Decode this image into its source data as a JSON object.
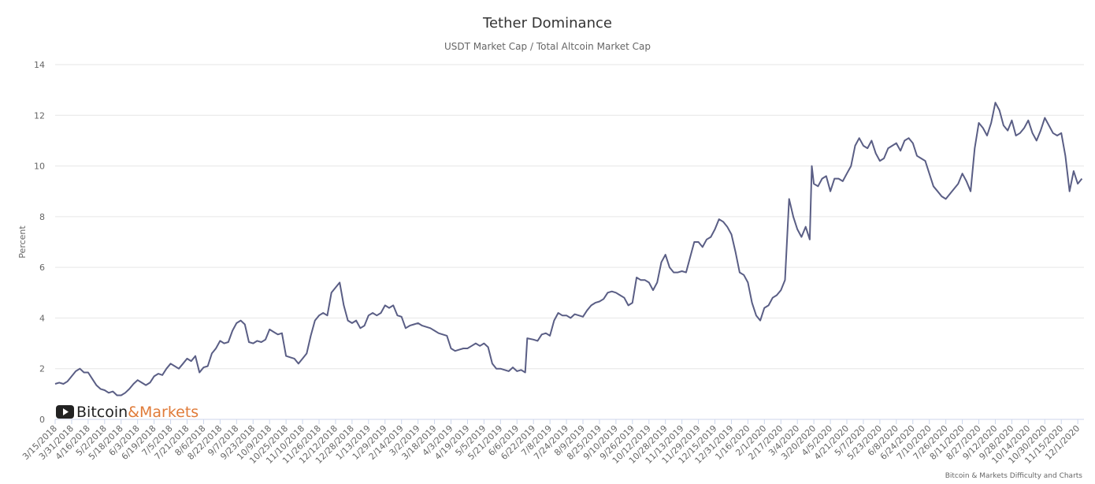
{
  "chart_data": {
    "type": "line",
    "title": "Tether Dominance",
    "subtitle": "USDT Market Cap / Total Altcoin Market Cap",
    "ylabel": "Percent",
    "ylim": [
      0,
      14
    ],
    "y_ticks": [
      "0",
      "2",
      "4",
      "6",
      "8",
      "10",
      "12",
      "14"
    ],
    "x_tick_labels": [
      "3/15/2018",
      "3/31/2018",
      "4/16/2018",
      "5/2/2018",
      "5/18/2018",
      "6/3/2018",
      "6/19/2018",
      "7/5/2018",
      "7/21/2018",
      "8/6/2018",
      "8/22/2018",
      "9/7/2018",
      "9/23/2018",
      "10/9/2018",
      "10/25/2018",
      "11/10/2018",
      "11/26/2018",
      "12/12/2018",
      "12/28/2018",
      "1/13/2019",
      "1/29/2019",
      "2/14/2019",
      "3/2/2019",
      "3/18/2019",
      "4/3/2019",
      "4/19/2019",
      "5/5/2019",
      "5/21/2019",
      "6/6/2019",
      "6/22/2019",
      "7/8/2019",
      "7/24/2019",
      "8/9/2019",
      "8/25/2019",
      "9/10/2019",
      "9/26/2019",
      "10/12/2019",
      "10/28/2019",
      "11/13/2019",
      "11/29/2019",
      "12/15/2019",
      "12/31/2019",
      "1/16/2020",
      "2/1/2020",
      "2/17/2020",
      "3/4/2020",
      "3/20/2020",
      "4/5/2020",
      "4/21/2020",
      "5/7/2020",
      "5/23/2020",
      "6/8/2020",
      "6/24/2020",
      "7/10/2020",
      "7/26/2020",
      "8/11/2020",
      "8/27/2020",
      "9/12/2020",
      "9/28/2020",
      "10/14/2020",
      "10/30/2020",
      "11/15/2020",
      "12/1/2020"
    ],
    "grid": true,
    "legend": "none",
    "series": [
      {
        "color": "#5a5e85",
        "points": [
          [
            "3/15/2018",
            1.4
          ],
          [
            "3/19/2018",
            1.45
          ],
          [
            "3/23/2018",
            1.4
          ],
          [
            "3/27/2018",
            1.5
          ],
          [
            "3/31/2018",
            1.7
          ],
          [
            "4/4/2018",
            1.9
          ],
          [
            "4/8/2018",
            2.0
          ],
          [
            "4/12/2018",
            1.85
          ],
          [
            "4/16/2018",
            1.85
          ],
          [
            "4/20/2018",
            1.6
          ],
          [
            "4/24/2018",
            1.35
          ],
          [
            "4/28/2018",
            1.2
          ],
          [
            "5/2/2018",
            1.15
          ],
          [
            "5/6/2018",
            1.05
          ],
          [
            "5/10/2018",
            1.1
          ],
          [
            "5/14/2018",
            0.95
          ],
          [
            "5/18/2018",
            0.95
          ],
          [
            "5/22/2018",
            1.05
          ],
          [
            "5/26/2018",
            1.2
          ],
          [
            "5/30/2018",
            1.4
          ],
          [
            "6/3/2018",
            1.55
          ],
          [
            "6/7/2018",
            1.45
          ],
          [
            "6/11/2018",
            1.35
          ],
          [
            "6/15/2018",
            1.45
          ],
          [
            "6/19/2018",
            1.7
          ],
          [
            "6/23/2018",
            1.8
          ],
          [
            "6/27/2018",
            1.75
          ],
          [
            "7/1/2018",
            2.0
          ],
          [
            "7/5/2018",
            2.2
          ],
          [
            "7/9/2018",
            2.1
          ],
          [
            "7/13/2018",
            2.0
          ],
          [
            "7/17/2018",
            2.2
          ],
          [
            "7/21/2018",
            2.4
          ],
          [
            "7/25/2018",
            2.3
          ],
          [
            "7/29/2018",
            2.5
          ],
          [
            "8/2/2018",
            1.85
          ],
          [
            "8/6/2018",
            2.05
          ],
          [
            "8/10/2018",
            2.1
          ],
          [
            "8/14/2018",
            2.6
          ],
          [
            "8/18/2018",
            2.8
          ],
          [
            "8/22/2018",
            3.1
          ],
          [
            "8/26/2018",
            3.0
          ],
          [
            "8/30/2018",
            3.05
          ],
          [
            "9/3/2018",
            3.5
          ],
          [
            "9/7/2018",
            3.8
          ],
          [
            "9/11/2018",
            3.9
          ],
          [
            "9/15/2018",
            3.75
          ],
          [
            "9/19/2018",
            3.05
          ],
          [
            "9/23/2018",
            3.0
          ],
          [
            "9/27/2018",
            3.1
          ],
          [
            "10/1/2018",
            3.05
          ],
          [
            "10/5/2018",
            3.15
          ],
          [
            "10/9/2018",
            3.55
          ],
          [
            "10/13/2018",
            3.45
          ],
          [
            "10/17/2018",
            3.35
          ],
          [
            "10/21/2018",
            3.4
          ],
          [
            "10/25/2018",
            2.5
          ],
          [
            "10/29/2018",
            2.45
          ],
          [
            "11/2/2018",
            2.4
          ],
          [
            "11/6/2018",
            2.2
          ],
          [
            "11/10/2018",
            2.4
          ],
          [
            "11/14/2018",
            2.6
          ],
          [
            "11/18/2018",
            3.3
          ],
          [
            "11/22/2018",
            3.9
          ],
          [
            "11/26/2018",
            4.1
          ],
          [
            "11/30/2018",
            4.2
          ],
          [
            "12/4/2018",
            4.1
          ],
          [
            "12/8/2018",
            5.0
          ],
          [
            "12/12/2018",
            5.2
          ],
          [
            "12/16/2018",
            5.4
          ],
          [
            "12/20/2018",
            4.5
          ],
          [
            "12/24/2018",
            3.9
          ],
          [
            "12/28/2018",
            3.8
          ],
          [
            "1/1/2019",
            3.9
          ],
          [
            "1/5/2019",
            3.6
          ],
          [
            "1/9/2019",
            3.7
          ],
          [
            "1/13/2019",
            4.1
          ],
          [
            "1/17/2019",
            4.2
          ],
          [
            "1/21/2019",
            4.1
          ],
          [
            "1/25/2019",
            4.2
          ],
          [
            "1/29/2019",
            4.5
          ],
          [
            "2/2/2019",
            4.4
          ],
          [
            "2/6/2019",
            4.5
          ],
          [
            "2/10/2019",
            4.1
          ],
          [
            "2/14/2019",
            4.05
          ],
          [
            "2/18/2019",
            3.6
          ],
          [
            "2/22/2019",
            3.7
          ],
          [
            "2/26/2019",
            3.75
          ],
          [
            "3/2/2019",
            3.8
          ],
          [
            "3/6/2019",
            3.7
          ],
          [
            "3/10/2019",
            3.65
          ],
          [
            "3/14/2019",
            3.6
          ],
          [
            "3/18/2019",
            3.5
          ],
          [
            "3/22/2019",
            3.4
          ],
          [
            "3/26/2019",
            3.35
          ],
          [
            "3/30/2019",
            3.3
          ],
          [
            "4/3/2019",
            2.8
          ],
          [
            "4/7/2019",
            2.7
          ],
          [
            "4/11/2019",
            2.75
          ],
          [
            "4/15/2019",
            2.8
          ],
          [
            "4/19/2019",
            2.8
          ],
          [
            "4/23/2019",
            2.9
          ],
          [
            "4/27/2019",
            3.0
          ],
          [
            "5/1/2019",
            2.9
          ],
          [
            "5/5/2019",
            3.0
          ],
          [
            "5/9/2019",
            2.85
          ],
          [
            "5/13/2019",
            2.2
          ],
          [
            "5/17/2019",
            2.0
          ],
          [
            "5/21/2019",
            2.0
          ],
          [
            "5/25/2019",
            1.95
          ],
          [
            "5/29/2019",
            1.9
          ],
          [
            "6/2/2019",
            2.05
          ],
          [
            "6/6/2019",
            1.9
          ],
          [
            "6/10/2019",
            1.95
          ],
          [
            "6/14/2019",
            1.85
          ],
          [
            "6/16/2019",
            3.2
          ],
          [
            "6/22/2019",
            3.15
          ],
          [
            "6/26/2019",
            3.1
          ],
          [
            "6/30/2019",
            3.35
          ],
          [
            "7/4/2019",
            3.4
          ],
          [
            "7/8/2019",
            3.3
          ],
          [
            "7/12/2019",
            3.9
          ],
          [
            "7/16/2019",
            4.2
          ],
          [
            "7/20/2019",
            4.1
          ],
          [
            "7/24/2019",
            4.1
          ],
          [
            "7/28/2019",
            4.0
          ],
          [
            "8/1/2019",
            4.15
          ],
          [
            "8/5/2019",
            4.1
          ],
          [
            "8/9/2019",
            4.05
          ],
          [
            "8/13/2019",
            4.3
          ],
          [
            "8/17/2019",
            4.5
          ],
          [
            "8/21/2019",
            4.6
          ],
          [
            "8/25/2019",
            4.65
          ],
          [
            "8/29/2019",
            4.75
          ],
          [
            "9/2/2019",
            5.0
          ],
          [
            "9/6/2019",
            5.05
          ],
          [
            "9/10/2019",
            5.0
          ],
          [
            "9/14/2019",
            4.9
          ],
          [
            "9/18/2019",
            4.8
          ],
          [
            "9/22/2019",
            4.5
          ],
          [
            "9/26/2019",
            4.6
          ],
          [
            "9/30/2019",
            5.6
          ],
          [
            "10/4/2019",
            5.5
          ],
          [
            "10/8/2019",
            5.5
          ],
          [
            "10/12/2019",
            5.4
          ],
          [
            "10/16/2019",
            5.1
          ],
          [
            "10/20/2019",
            5.4
          ],
          [
            "10/24/2019",
            6.2
          ],
          [
            "10/28/2019",
            6.5
          ],
          [
            "11/1/2019",
            6.0
          ],
          [
            "11/5/2019",
            5.8
          ],
          [
            "11/9/2019",
            5.8
          ],
          [
            "11/13/2019",
            5.85
          ],
          [
            "11/17/2019",
            5.8
          ],
          [
            "11/21/2019",
            6.4
          ],
          [
            "11/25/2019",
            7.0
          ],
          [
            "11/29/2019",
            7.0
          ],
          [
            "12/3/2019",
            6.8
          ],
          [
            "12/7/2019",
            7.1
          ],
          [
            "12/11/2019",
            7.2
          ],
          [
            "12/15/2019",
            7.5
          ],
          [
            "12/19/2019",
            7.9
          ],
          [
            "12/23/2019",
            7.8
          ],
          [
            "12/27/2019",
            7.6
          ],
          [
            "12/31/2019",
            7.3
          ],
          [
            "1/4/2020",
            6.6
          ],
          [
            "1/8/2020",
            5.8
          ],
          [
            "1/12/2020",
            5.7
          ],
          [
            "1/16/2020",
            5.4
          ],
          [
            "1/20/2020",
            4.6
          ],
          [
            "1/24/2020",
            4.1
          ],
          [
            "1/28/2020",
            3.9
          ],
          [
            "2/1/2020",
            4.4
          ],
          [
            "2/5/2020",
            4.5
          ],
          [
            "2/9/2020",
            4.8
          ],
          [
            "2/13/2020",
            4.9
          ],
          [
            "2/17/2020",
            5.1
          ],
          [
            "2/21/2020",
            5.5
          ],
          [
            "2/25/2020",
            8.7
          ],
          [
            "2/29/2020",
            8.0
          ],
          [
            "3/4/2020",
            7.5
          ],
          [
            "3/8/2020",
            7.2
          ],
          [
            "3/12/2020",
            7.6
          ],
          [
            "3/16/2020",
            7.1
          ],
          [
            "3/18/2020",
            10.0
          ],
          [
            "3/20/2020",
            9.3
          ],
          [
            "3/24/2020",
            9.2
          ],
          [
            "3/28/2020",
            9.5
          ],
          [
            "4/1/2020",
            9.6
          ],
          [
            "4/5/2020",
            9.0
          ],
          [
            "4/9/2020",
            9.5
          ],
          [
            "4/13/2020",
            9.5
          ],
          [
            "4/17/2020",
            9.4
          ],
          [
            "4/21/2020",
            9.7
          ],
          [
            "4/25/2020",
            10.0
          ],
          [
            "4/29/2020",
            10.8
          ],
          [
            "5/3/2020",
            11.1
          ],
          [
            "5/7/2020",
            10.8
          ],
          [
            "5/11/2020",
            10.7
          ],
          [
            "5/15/2020",
            11.0
          ],
          [
            "5/19/2020",
            10.5
          ],
          [
            "5/23/2020",
            10.2
          ],
          [
            "5/27/2020",
            10.3
          ],
          [
            "5/31/2020",
            10.7
          ],
          [
            "6/4/2020",
            10.8
          ],
          [
            "6/8/2020",
            10.9
          ],
          [
            "6/12/2020",
            10.6
          ],
          [
            "6/16/2020",
            11.0
          ],
          [
            "6/20/2020",
            11.1
          ],
          [
            "6/24/2020",
            10.9
          ],
          [
            "6/28/2020",
            10.4
          ],
          [
            "7/2/2020",
            10.3
          ],
          [
            "7/6/2020",
            10.2
          ],
          [
            "7/10/2020",
            9.7
          ],
          [
            "7/14/2020",
            9.2
          ],
          [
            "7/18/2020",
            9.0
          ],
          [
            "7/22/2020",
            8.8
          ],
          [
            "7/26/2020",
            8.7
          ],
          [
            "7/30/2020",
            8.9
          ],
          [
            "8/3/2020",
            9.1
          ],
          [
            "8/7/2020",
            9.3
          ],
          [
            "8/11/2020",
            9.7
          ],
          [
            "8/15/2020",
            9.4
          ],
          [
            "8/19/2020",
            9.0
          ],
          [
            "8/23/2020",
            10.7
          ],
          [
            "8/27/2020",
            11.7
          ],
          [
            "8/31/2020",
            11.5
          ],
          [
            "9/4/2020",
            11.2
          ],
          [
            "9/8/2020",
            11.7
          ],
          [
            "9/12/2020",
            12.5
          ],
          [
            "9/16/2020",
            12.2
          ],
          [
            "9/20/2020",
            11.6
          ],
          [
            "9/24/2020",
            11.4
          ],
          [
            "9/28/2020",
            11.8
          ],
          [
            "10/2/2020",
            11.2
          ],
          [
            "10/6/2020",
            11.3
          ],
          [
            "10/10/2020",
            11.5
          ],
          [
            "10/14/2020",
            11.8
          ],
          [
            "10/18/2020",
            11.3
          ],
          [
            "10/22/2020",
            11.0
          ],
          [
            "10/26/2020",
            11.4
          ],
          [
            "10/30/2020",
            11.9
          ],
          [
            "11/3/2020",
            11.6
          ],
          [
            "11/7/2020",
            11.3
          ],
          [
            "11/11/2020",
            11.2
          ],
          [
            "11/15/2020",
            11.3
          ],
          [
            "11/19/2020",
            10.4
          ],
          [
            "11/23/2020",
            9.0
          ],
          [
            "11/27/2020",
            9.8
          ],
          [
            "12/1/2020",
            9.3
          ],
          [
            "12/5/2020",
            9.5
          ]
        ]
      }
    ]
  },
  "logo": {
    "word1": "Bitcoin",
    "word2": "&Markets",
    "color1": "#222222",
    "color2": "#e07b39"
  },
  "credits": "Bitcoin & Markets Difficulty and Charts"
}
